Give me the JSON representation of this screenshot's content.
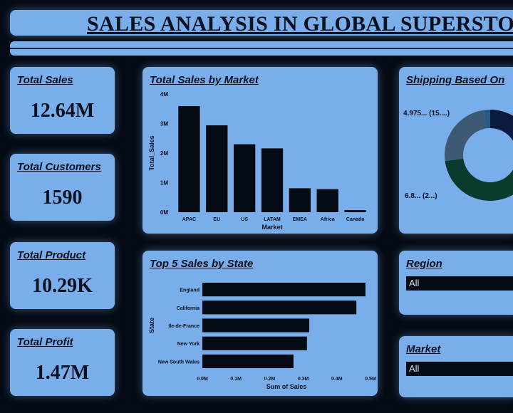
{
  "title": "SALES ANALYSIS IN GLOBAL SUPERSTORE",
  "kpis": [
    {
      "label": "Total Sales",
      "value": "12.64M"
    },
    {
      "label": "Total Customers",
      "value": "1590"
    },
    {
      "label": "Total Product",
      "value": "10.29K"
    },
    {
      "label": "Total Profit",
      "value": "1.47M"
    }
  ],
  "market_chart": {
    "title": "Total Sales by Market"
  },
  "state_chart": {
    "title": "Top 5 Sales by State"
  },
  "shipping": {
    "title": "Shipping Based On",
    "label_top": "4.975... (15....)",
    "label_left": "6.8... (2...)"
  },
  "region": {
    "title": "Region",
    "value": "All"
  },
  "market_slicer": {
    "title": "Market",
    "value": "All"
  },
  "chart_data": [
    {
      "type": "bar",
      "title": "Total Sales by Market",
      "categories": [
        "APAC",
        "EU",
        "US",
        "LATAM",
        "EMEA",
        "Africa",
        "Canada"
      ],
      "values": [
        3.59,
        2.94,
        2.3,
        2.16,
        0.81,
        0.78,
        0.07
      ],
      "xlabel": "Market",
      "ylabel": "Total_Sales",
      "yticks": [
        "0M",
        "1M",
        "2M",
        "3M",
        "4M"
      ],
      "ylim": [
        0,
        4
      ],
      "unit": "M",
      "color": "#050b14"
    },
    {
      "type": "bar",
      "orientation": "horizontal",
      "title": "Top 5 Sales by State",
      "categories": [
        "England",
        "California",
        "Ile-de-France",
        "New York",
        "New South Wales"
      ],
      "values": [
        0.485,
        0.458,
        0.318,
        0.311,
        0.271
      ],
      "xlabel": "Sum of Sales",
      "ylabel": "State",
      "xticks": [
        "0.0M",
        "0.1M",
        "0.2M",
        "0.3M",
        "0.4M",
        "0.5M"
      ],
      "xlim": [
        0,
        0.5
      ],
      "unit": "M",
      "color": "#050b14"
    },
    {
      "type": "pie",
      "title": "Shipping Based On",
      "donut": true,
      "values": [
        4.975,
        15,
        6.8,
        0.6
      ],
      "colors": [
        "#0b1a3d",
        "#0a3a2e",
        "#3d5a75",
        "#255a8a"
      ]
    }
  ]
}
